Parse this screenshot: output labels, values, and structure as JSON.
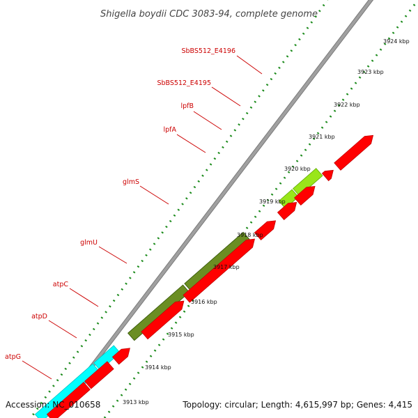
{
  "title": "Shigella boydii CDC 3083-94, complete genome",
  "accession": "Accession: NC_010658",
  "summary": "Topology: circular; Length: 4,615,997 bp; Genes: 4,415",
  "colors": {
    "backbone": "#a0a0a0",
    "cds": "#ff0000",
    "lpf": "#99e61a",
    "glm": "#6b8e23",
    "atp": "#00ffff",
    "ticks": "#1a8a1a",
    "label": "#cc0000"
  },
  "ticks": [
    "3913 kbp",
    "3914 kbp",
    "3915 kbp",
    "3916 kbp",
    "3917 kbp",
    "3918 kbp",
    "3919 kbp",
    "3920 kbp",
    "3921 kbp",
    "3922 kbp",
    "3923 kbp",
    "3924 kbp"
  ],
  "genes": [
    {
      "name": "SbBS512_E4196"
    },
    {
      "name": "SbBS512_E4195"
    },
    {
      "name": "lpfB"
    },
    {
      "name": "lpfA"
    },
    {
      "name": "glmS"
    },
    {
      "name": "glmU"
    },
    {
      "name": "atpC"
    },
    {
      "name": "atpD"
    },
    {
      "name": "atpG"
    }
  ]
}
